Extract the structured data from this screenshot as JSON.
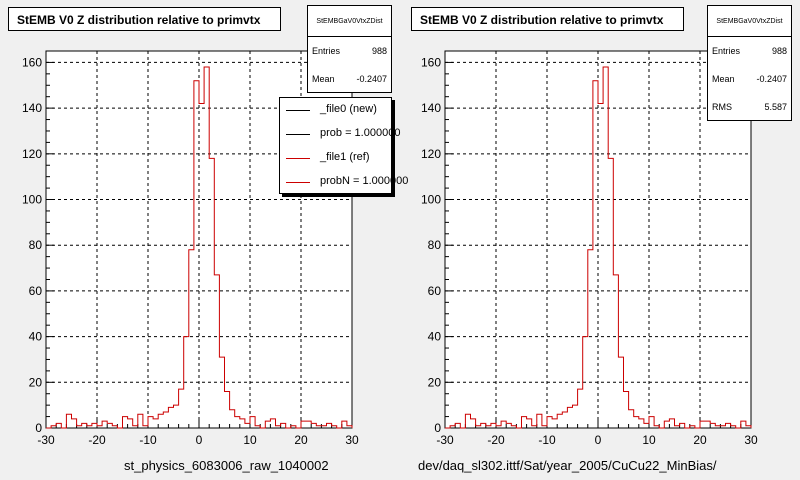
{
  "chart_data": [
    {
      "type": "bar",
      "title": "StEMB V0 Z distribution relative to primvtx",
      "xlabel": "st_physics_6083006_raw_1040002",
      "ylabel": "",
      "xlim": [
        -30,
        30
      ],
      "ylim": [
        0,
        165
      ],
      "bin_width": 1,
      "x_ticks": [
        -30,
        -20,
        -10,
        0,
        10,
        20,
        30
      ],
      "y_ticks": [
        0,
        20,
        40,
        60,
        80,
        100,
        120,
        140,
        160
      ],
      "grid": true,
      "series": [
        {
          "name": "_file1 (ref)",
          "color": "#cc0000",
          "bin_edges": [
            -30,
            -29,
            -28,
            -27,
            -26,
            -25,
            -24,
            -23,
            -22,
            -21,
            -20,
            -19,
            -18,
            -17,
            -16,
            -15,
            -14,
            -13,
            -12,
            -11,
            -10,
            -9,
            -8,
            -7,
            -6,
            -5,
            -4,
            -3,
            -2,
            -1,
            0,
            1,
            2,
            3,
            4,
            5,
            6,
            7,
            8,
            9,
            10,
            11,
            12,
            13,
            14,
            15,
            16,
            17,
            18,
            19,
            20,
            21,
            22,
            23,
            24,
            25,
            26,
            27,
            28,
            29,
            30
          ],
          "values": [
            0,
            1,
            2,
            0,
            6,
            4,
            1,
            2,
            1,
            2,
            1,
            3,
            2,
            1,
            0,
            5,
            4,
            1,
            6,
            1,
            5,
            4,
            6,
            7,
            9,
            10,
            17,
            40,
            78,
            152,
            142,
            158,
            118,
            67,
            31,
            16,
            8,
            5,
            4,
            2,
            5,
            1,
            0,
            3,
            4,
            1,
            2,
            0,
            1,
            0,
            3,
            3,
            2,
            1,
            1,
            2,
            1,
            0,
            3,
            1
          ]
        }
      ],
      "stats": {
        "header": "StEMBGaV0VtxZDist",
        "entries_label": "Entries",
        "entries": "988",
        "mean_label": "Mean",
        "mean": "-0.2407"
      },
      "legend": [
        {
          "label": "_file0 (new)",
          "color": "#000000"
        },
        {
          "label": "prob = 1.000000",
          "color": "#000000"
        },
        {
          "label": "_file1 (ref)",
          "color": "#cc0000"
        },
        {
          "label": "probN = 1.000000",
          "color": "#cc0000"
        }
      ]
    },
    {
      "type": "bar",
      "title": "StEMB V0 Z distribution relative to primvtx",
      "xlabel": "dev/daq_sl302.ittf/Sat/year_2005/CuCu22_MinBias/",
      "ylabel": "",
      "xlim": [
        -30,
        30
      ],
      "ylim": [
        0,
        165
      ],
      "bin_width": 1,
      "x_ticks": [
        -30,
        -20,
        -10,
        0,
        10,
        20,
        30
      ],
      "y_ticks": [
        0,
        20,
        40,
        60,
        80,
        100,
        120,
        140,
        160
      ],
      "grid": true,
      "series": [
        {
          "name": "",
          "color": "#cc0000",
          "bin_edges": [
            -30,
            -29,
            -28,
            -27,
            -26,
            -25,
            -24,
            -23,
            -22,
            -21,
            -20,
            -19,
            -18,
            -17,
            -16,
            -15,
            -14,
            -13,
            -12,
            -11,
            -10,
            -9,
            -8,
            -7,
            -6,
            -5,
            -4,
            -3,
            -2,
            -1,
            0,
            1,
            2,
            3,
            4,
            5,
            6,
            7,
            8,
            9,
            10,
            11,
            12,
            13,
            14,
            15,
            16,
            17,
            18,
            19,
            20,
            21,
            22,
            23,
            24,
            25,
            26,
            27,
            28,
            29,
            30
          ],
          "values": [
            0,
            1,
            2,
            0,
            6,
            4,
            1,
            2,
            1,
            2,
            1,
            3,
            2,
            1,
            0,
            5,
            4,
            1,
            6,
            1,
            5,
            4,
            6,
            7,
            9,
            10,
            17,
            40,
            78,
            152,
            142,
            158,
            118,
            67,
            31,
            16,
            8,
            5,
            4,
            2,
            5,
            1,
            0,
            3,
            4,
            1,
            2,
            0,
            1,
            0,
            3,
            3,
            2,
            1,
            1,
            2,
            1,
            0,
            3,
            1
          ]
        }
      ],
      "stats": {
        "header": "StEMBGaV0VtxZDist",
        "entries_label": "Entries",
        "entries": "988",
        "mean_label": "Mean",
        "mean": "-0.2407",
        "rms_label": "RMS",
        "rms": "5.587"
      }
    }
  ]
}
